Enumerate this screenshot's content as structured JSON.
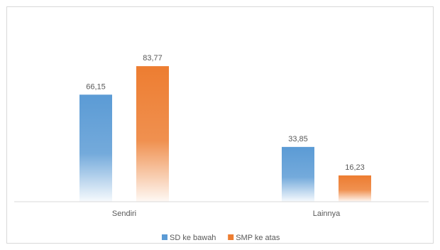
{
  "chart_data": {
    "type": "bar",
    "categories": [
      "Sendiri",
      "Lainnya"
    ],
    "series": [
      {
        "name": "SD ke bawah",
        "values": [
          66.15,
          33.85
        ],
        "labels": [
          "66,15",
          "33,85"
        ],
        "color": "#5b9bd5"
      },
      {
        "name": "SMP ke atas",
        "values": [
          83.77,
          16.23
        ],
        "labels": [
          "83,77",
          "16,23"
        ],
        "color": "#ed7d31"
      }
    ],
    "title": "",
    "xlabel": "",
    "ylabel": "",
    "ylim": [
      0,
      100
    ],
    "grid": false,
    "legend": "bottom-center"
  }
}
